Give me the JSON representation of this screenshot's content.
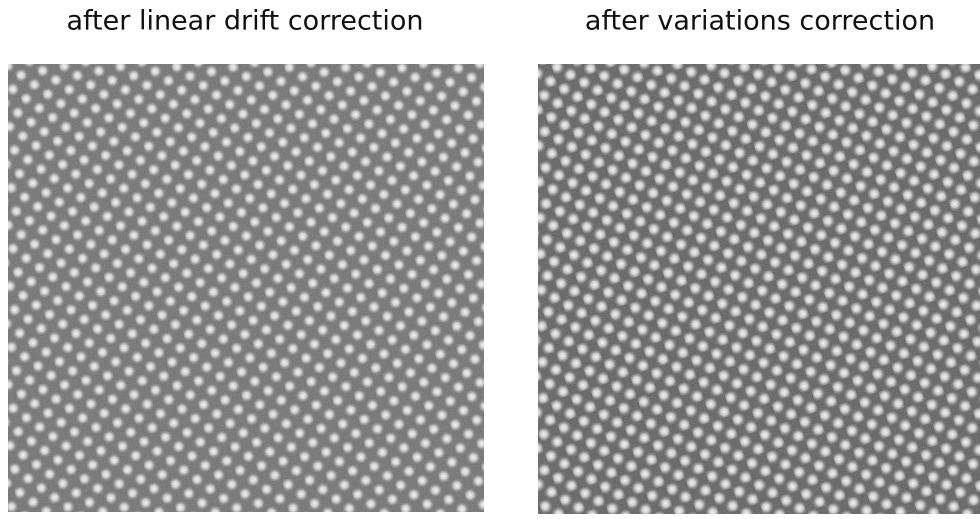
{
  "panels": [
    {
      "title": "after linear drift correction"
    },
    {
      "title": "after variations correction"
    }
  ]
}
